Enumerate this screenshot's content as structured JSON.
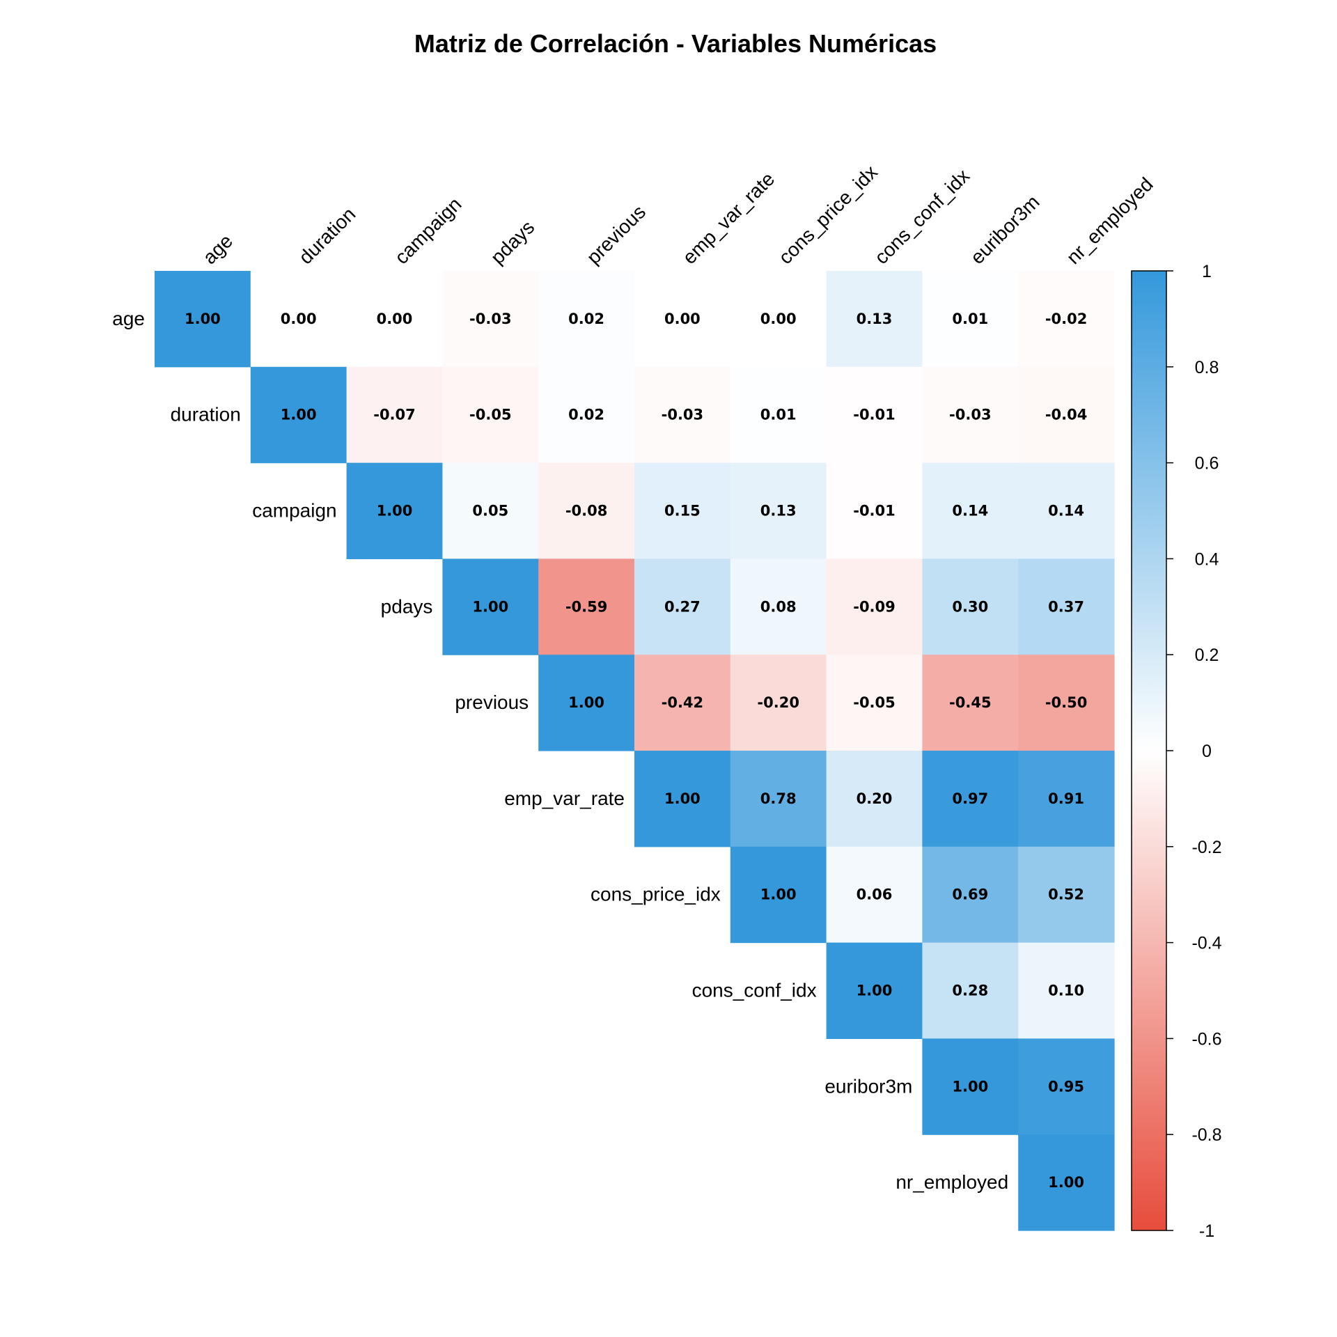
{
  "chart_data": {
    "type": "heatmap",
    "title": "Matriz de Correlación - Variables Numéricas",
    "variables": [
      "age",
      "duration",
      "campaign",
      "pdays",
      "previous",
      "emp_var_rate",
      "cons_price_idx",
      "cons_conf_idx",
      "euribor3m",
      "nr_employed"
    ],
    "matrix": [
      [
        1.0,
        0.0,
        0.0,
        -0.03,
        0.02,
        0.0,
        0.0,
        0.13,
        0.01,
        -0.02
      ],
      [
        null,
        1.0,
        -0.07,
        -0.05,
        0.02,
        -0.03,
        0.01,
        -0.01,
        -0.03,
        -0.04
      ],
      [
        null,
        null,
        1.0,
        0.05,
        -0.08,
        0.15,
        0.13,
        -0.01,
        0.14,
        0.14
      ],
      [
        null,
        null,
        null,
        1.0,
        -0.59,
        0.27,
        0.08,
        -0.09,
        0.3,
        0.37
      ],
      [
        null,
        null,
        null,
        null,
        1.0,
        -0.42,
        -0.2,
        -0.05,
        -0.45,
        -0.5
      ],
      [
        null,
        null,
        null,
        null,
        null,
        1.0,
        0.78,
        0.2,
        0.97,
        0.91
      ],
      [
        null,
        null,
        null,
        null,
        null,
        null,
        1.0,
        0.06,
        0.69,
        0.52
      ],
      [
        null,
        null,
        null,
        null,
        null,
        null,
        null,
        1.0,
        0.28,
        0.1
      ],
      [
        null,
        null,
        null,
        null,
        null,
        null,
        null,
        null,
        1.0,
        0.95
      ],
      [
        null,
        null,
        null,
        null,
        null,
        null,
        null,
        null,
        null,
        1.0
      ]
    ],
    "color_scale": {
      "min": -1,
      "max": 1,
      "negative_color": "#E74C3C",
      "zero_color": "#FFFFFF",
      "positive_color": "#3498DB",
      "ticks": [
        "1",
        "0.8",
        "0.6",
        "0.4",
        "0.2",
        "0",
        "-0.2",
        "-0.4",
        "-0.6",
        "-0.8",
        "-1"
      ]
    },
    "legend_position": "right"
  }
}
